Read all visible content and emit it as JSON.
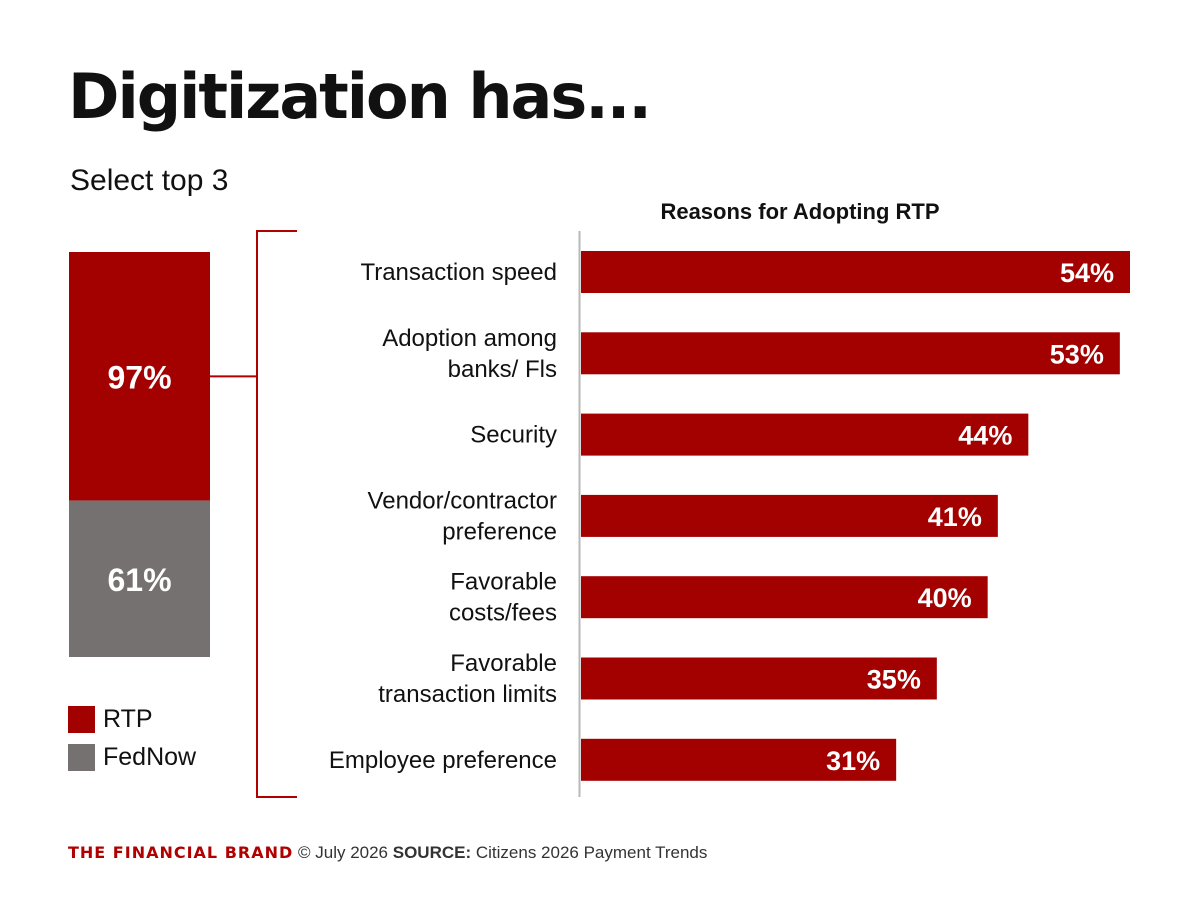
{
  "title": "Digitization has...",
  "subtitle": "Select top 3",
  "colors": {
    "rtp": "#a30000",
    "fednow": "#767171",
    "bracket": "#b00000"
  },
  "chart_data": [
    {
      "type": "bar",
      "orientation": "vertical-stacked",
      "categories": [
        "RTP",
        "FedNow"
      ],
      "values": [
        97,
        61
      ],
      "value_labels": [
        "97%",
        "61%"
      ]
    },
    {
      "type": "bar",
      "orientation": "horizontal",
      "title": "Reasons for Adopting RTP",
      "categories": [
        [
          "Transaction speed"
        ],
        [
          "Adoption among",
          "banks/ Fls"
        ],
        [
          "Security"
        ],
        [
          "Vendor/contractor",
          "preference"
        ],
        [
          "Favorable",
          "costs/fees"
        ],
        [
          "Favorable",
          "transaction limits"
        ],
        [
          "Employee preference"
        ]
      ],
      "values": [
        54,
        53,
        44,
        41,
        40,
        35,
        31
      ],
      "value_labels": [
        "54%",
        "53%",
        "44%",
        "41%",
        "40%",
        "35%",
        "31%"
      ],
      "xlim": [
        0,
        54
      ]
    }
  ],
  "legend": [
    {
      "label": "RTP",
      "color": "#a30000"
    },
    {
      "label": "FedNow",
      "color": "#767171"
    }
  ],
  "footer": {
    "brand": "THE FINANCIAL BRAND",
    "date": " © July 2026 ",
    "source_label": "SOURCE:",
    "source": " Citizens 2026 Payment Trends"
  }
}
